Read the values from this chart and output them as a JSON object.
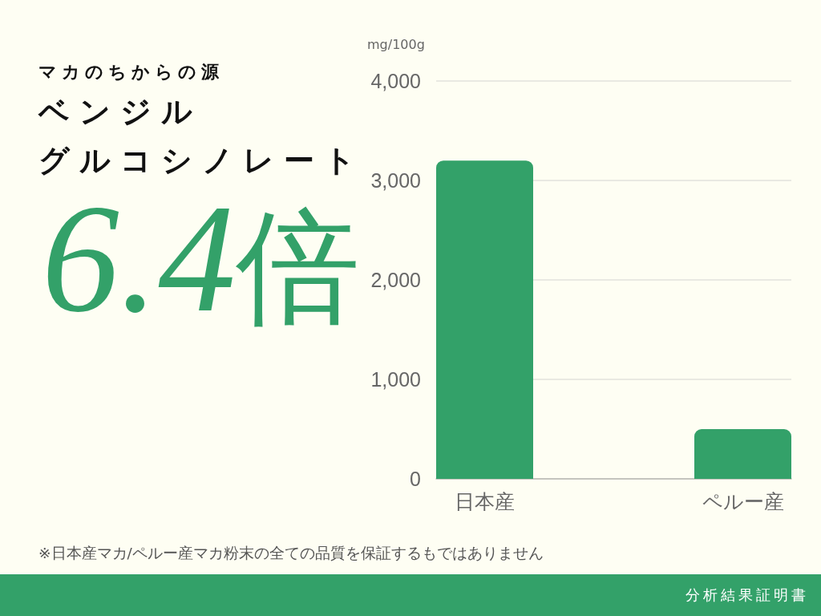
{
  "chart_data": {
    "type": "bar",
    "subtitle": "マカのちからの源",
    "title": "ベンジルグルコシノレート",
    "ylabel": "mg/100g",
    "categories": [
      "日本産",
      "ペルー産"
    ],
    "values": [
      3200,
      500
    ],
    "color": "#33a169",
    "ylim": [
      0,
      4000
    ],
    "yticks": [
      0,
      {
        "value": 1000,
        "label": "1,000"
      },
      {
        "value": 2000,
        "label": "2,000"
      },
      {
        "value": 3000,
        "label": "3,000"
      },
      {
        "value": 4000,
        "label": "4,000"
      }
    ],
    "grid": "y",
    "annotations": [
      "6.4倍",
      "※日本産マカ/ペルー産マカ粉末の全ての品質を保証するもではありません",
      "分析結果証明書"
    ]
  }
}
